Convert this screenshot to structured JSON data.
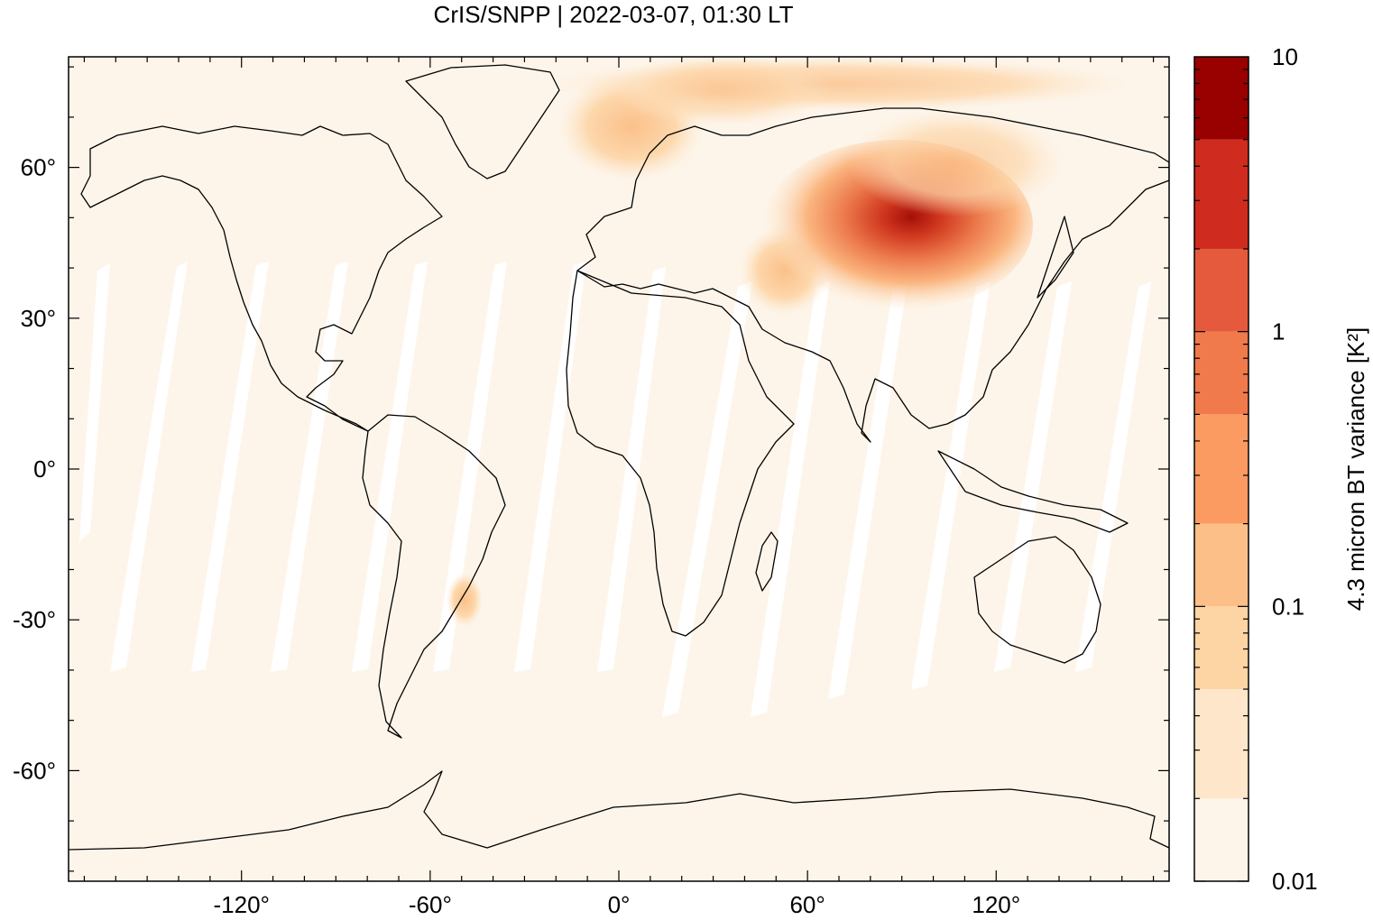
{
  "title": "CrIS/SNPP | 2022-03-07, 01:30 LT",
  "map": {
    "projection": "equirectangular",
    "lon_range": [
      -175,
      175
    ],
    "lat_range": [
      -82,
      82
    ],
    "x_ticks": [
      {
        "value": -120,
        "label": "-120°"
      },
      {
        "value": -60,
        "label": "-60°"
      },
      {
        "value": 0,
        "label": "0°"
      },
      {
        "value": 60,
        "label": "60°"
      },
      {
        "value": 120,
        "label": "120°"
      }
    ],
    "y_ticks": [
      {
        "value": 60,
        "label": "60°"
      },
      {
        "value": 30,
        "label": "30°"
      },
      {
        "value": 0,
        "label": "0°"
      },
      {
        "value": -30,
        "label": "-30°"
      },
      {
        "value": -60,
        "label": "-60°"
      }
    ],
    "background_color": "#fdf5ea",
    "coastline_color": "#000000",
    "swath_gap_color": "#ffffff",
    "features": [
      {
        "name": "Central Asia high variance",
        "region": "Kazakhstan / Siberia / Mongolia",
        "peak_value": 8
      },
      {
        "name": "Scandinavia / Arctic moderate variance",
        "region": "Northern Europe",
        "peak_value": 0.2
      },
      {
        "name": "Caspian region moderate variance",
        "region": "Caspian Sea",
        "peak_value": 0.2
      }
    ]
  },
  "colorbar": {
    "label": "4.3 micron BT variance [K²]",
    "scale": "log",
    "range": [
      0.01,
      10
    ],
    "tick_labels": [
      {
        "value": 10,
        "label": "10"
      },
      {
        "value": 1,
        "label": "1"
      },
      {
        "value": 0.1,
        "label": "0.1"
      },
      {
        "value": 0.01,
        "label": "0.01"
      }
    ],
    "levels": [
      {
        "from": 0.01,
        "to": 0.02,
        "color": "#fdf5ea"
      },
      {
        "from": 0.02,
        "to": 0.05,
        "color": "#fde6c9"
      },
      {
        "from": 0.05,
        "to": 0.1,
        "color": "#fdd4a4"
      },
      {
        "from": 0.1,
        "to": 0.2,
        "color": "#fdbf88"
      },
      {
        "from": 0.2,
        "to": 0.5,
        "color": "#fc9b61"
      },
      {
        "from": 0.5,
        "to": 1,
        "color": "#f07a4b"
      },
      {
        "from": 1,
        "to": 2,
        "color": "#e55a3c"
      },
      {
        "from": 2,
        "to": 5,
        "color": "#cf2b1e"
      },
      {
        "from": 5,
        "to": 10,
        "color": "#990000"
      }
    ]
  }
}
